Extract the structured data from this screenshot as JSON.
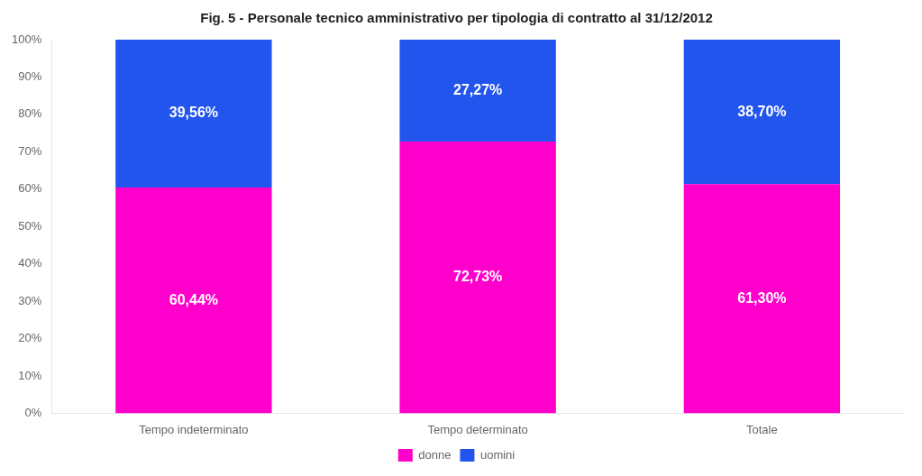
{
  "chart_data": {
    "type": "bar",
    "title": "Fig. 5 - Personale tecnico amministrativo per tipologia di contratto al 31/12/2012",
    "categories": [
      "Tempo indeterminato",
      "Tempo determinato",
      "Totale"
    ],
    "stacked": true,
    "series": [
      {
        "name": "donne",
        "color": "#FF00CC",
        "values": [
          60.44,
          72.73,
          61.3
        ],
        "value_labels": [
          "60,44%",
          "72,73%",
          "61,30%"
        ]
      },
      {
        "name": "uomini",
        "color": "#2255EE",
        "values": [
          39.56,
          27.27,
          38.7
        ],
        "value_labels": [
          "39,56%",
          "27,27%",
          "38,70%"
        ]
      }
    ],
    "ylim": [
      0,
      100
    ],
    "yticks": [
      {
        "value": 0,
        "label": "0%"
      },
      {
        "value": 10,
        "label": "10%"
      },
      {
        "value": 20,
        "label": "20%"
      },
      {
        "value": 30,
        "label": "30%"
      },
      {
        "value": 40,
        "label": "40%"
      },
      {
        "value": 50,
        "label": "50%"
      },
      {
        "value": 60,
        "label": "60%"
      },
      {
        "value": 70,
        "label": "70%"
      },
      {
        "value": 80,
        "label": "80%"
      },
      {
        "value": 90,
        "label": "90%"
      },
      {
        "value": 100,
        "label": "100%"
      }
    ],
    "grid": false,
    "legend": "bottom",
    "data_labels": true
  }
}
